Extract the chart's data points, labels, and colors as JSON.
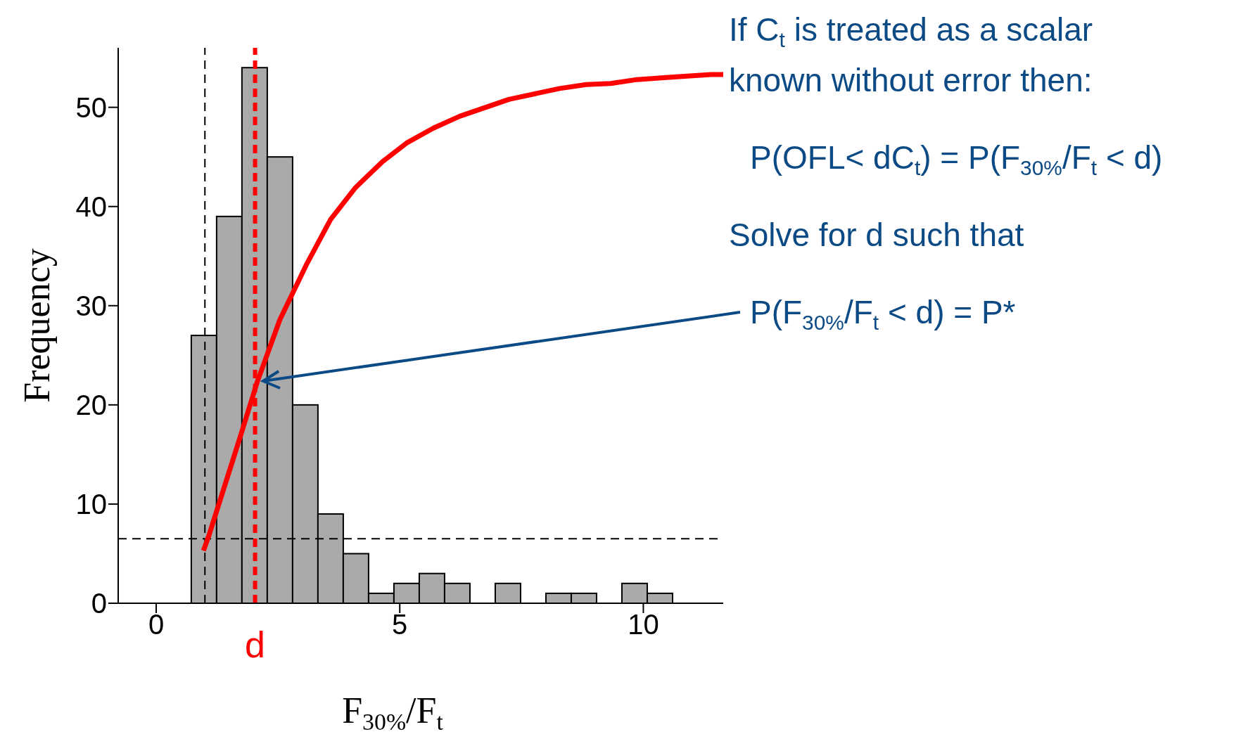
{
  "chart_data": {
    "type": "histogram",
    "xlabel": "F$_{30%}$/F$_{t}$",
    "ylabel": "Frequency",
    "bins": [
      0.72,
      1.24,
      1.76,
      2.28,
      2.8,
      3.32,
      3.84,
      4.36,
      4.88,
      5.4,
      5.92,
      6.44,
      6.96,
      7.48,
      8.0,
      8.52,
      9.04,
      9.56,
      10.08,
      10.6,
      11.12,
      11.64
    ],
    "values": [
      27,
      39,
      54,
      45,
      20,
      9,
      5,
      1,
      2,
      3,
      2,
      0,
      2,
      0,
      1,
      1,
      0,
      2,
      1,
      0,
      0
    ],
    "color": "#aaaaaa",
    "series": [
      {
        "type": "line",
        "color": "#ff0000",
        "x": [
          0.97,
          1.08,
          1.72,
          2.08,
          2.54,
          3.08,
          3.58,
          4.09,
          4.64,
          5.14,
          5.69,
          6.23,
          7.24,
          8.28,
          8.83,
          9.33,
          9.87,
          10.47,
          11.39,
          11.64
        ],
        "values": [
          5.3,
          6.8,
          16.7,
          22.4,
          28.6,
          34.1,
          38.7,
          41.9,
          44.5,
          46.4,
          47.9,
          49.1,
          50.8,
          51.9,
          52.3,
          52.4,
          52.8,
          53.0,
          53.3,
          53.3
        ]
      }
    ],
    "xlim": [
      -0.78,
      11.64
    ],
    "xticks": [
      0,
      5,
      10
    ],
    "ylim": [
      0,
      56
    ],
    "yticks": [
      0,
      10,
      20,
      30,
      40,
      50
    ],
    "marker": "none",
    "ref_lines": [
      {
        "axis": "x",
        "value": 1,
        "color": "#000000",
        "line_style": "dashed"
      },
      {
        "axis": "x",
        "value": 2.03,
        "label": "d",
        "color": "#ff0000",
        "line_style": "dashed"
      },
      {
        "axis": "y",
        "value": 6.5,
        "color": "#000000",
        "line_style": "dashed"
      }
    ],
    "annotations": [
      "If C$_{t}$ is treated as a scalar",
      "known without error then:",
      "P(OFL< dC$_{t}$) = P(F$_{30%}$/F$_{t}$ < d)",
      "Solve for d such that",
      {
        "text": "P(F$_{30%}$/F$_{t}$ < d) = P*",
        "x": 2.08,
        "y": 22.4
      }
    ]
  }
}
